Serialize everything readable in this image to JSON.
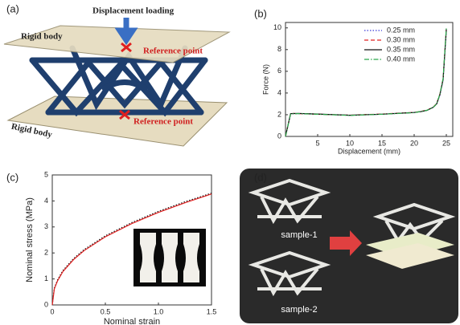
{
  "panel_labels": [
    "(a)",
    "(b)",
    "(c)",
    "(d)"
  ],
  "diagram": {
    "loading": "Displacement loading",
    "top_body": "Rigid body",
    "bottom_body": "Rigid body",
    "top_point": "Reference point",
    "bottom_point": "Reference point"
  },
  "photo": {
    "samples": [
      "sample-1",
      "sample-2"
    ]
  },
  "chart_data": [
    {
      "type": "line",
      "xlabel": "Displacement (mm)",
      "ylabel": "Force (N)",
      "legend": "upper right",
      "x": [
        0,
        0.8,
        2,
        5,
        10,
        15,
        20,
        21,
        22,
        23,
        23.5,
        24,
        24.5,
        25
      ],
      "series": [
        {
          "name": "0.25 mm",
          "color": "#3b3bd6",
          "style": "dotted",
          "values": [
            0,
            2.1,
            2.1,
            2.05,
            1.95,
            2.05,
            2.2,
            2.3,
            2.4,
            2.7,
            3.0,
            3.8,
            5.2,
            9.7
          ]
        },
        {
          "name": "0.30 mm",
          "color": "#e02020",
          "style": "dashed",
          "values": [
            0,
            2.12,
            2.1,
            2.05,
            1.96,
            2.06,
            2.21,
            2.3,
            2.42,
            2.72,
            3.05,
            3.9,
            5.3,
            9.8
          ]
        },
        {
          "name": "0.35 mm",
          "color": "#111111",
          "style": "solid",
          "values": [
            0,
            2.1,
            2.12,
            2.06,
            1.95,
            2.05,
            2.2,
            2.28,
            2.4,
            2.7,
            3.0,
            3.85,
            5.25,
            9.9
          ]
        },
        {
          "name": "0.40 mm",
          "color": "#2aa84a",
          "style": "dashdot",
          "values": [
            0,
            2.08,
            2.1,
            2.04,
            1.94,
            2.04,
            2.19,
            2.3,
            2.41,
            2.71,
            3.02,
            3.9,
            5.35,
            10
          ]
        }
      ],
      "xlim": [
        0,
        26
      ],
      "ylim": [
        0,
        10.5
      ],
      "xticks": [
        5,
        10,
        15,
        20,
        25
      ],
      "yticks": [
        0,
        2,
        4,
        6,
        8,
        10
      ]
    },
    {
      "type": "line",
      "xlabel": "Nominal strain",
      "ylabel": "Nominal stress (MPa)",
      "x": [
        0,
        0.02,
        0.05,
        0.1,
        0.2,
        0.3,
        0.5,
        0.75,
        1,
        1.25,
        1.5
      ],
      "series": [
        {
          "color": "#111111",
          "style": "dotted",
          "values": [
            0,
            0.65,
            0.97,
            1.32,
            1.78,
            2.13,
            2.66,
            3.17,
            3.6,
            3.97,
            4.3
          ]
        },
        {
          "color": "#e02020",
          "style": "solid",
          "values": [
            0,
            0.62,
            0.93,
            1.28,
            1.74,
            2.09,
            2.62,
            3.13,
            3.56,
            3.93,
            4.27
          ]
        }
      ],
      "xlim": [
        0,
        1.5
      ],
      "ylim": [
        0,
        5
      ],
      "xticks": [
        0,
        0.5,
        {
          "value": 1,
          "label": "1.0"
        },
        1.5
      ],
      "yticks": [
        0,
        1,
        2,
        3,
        4,
        5
      ]
    }
  ]
}
